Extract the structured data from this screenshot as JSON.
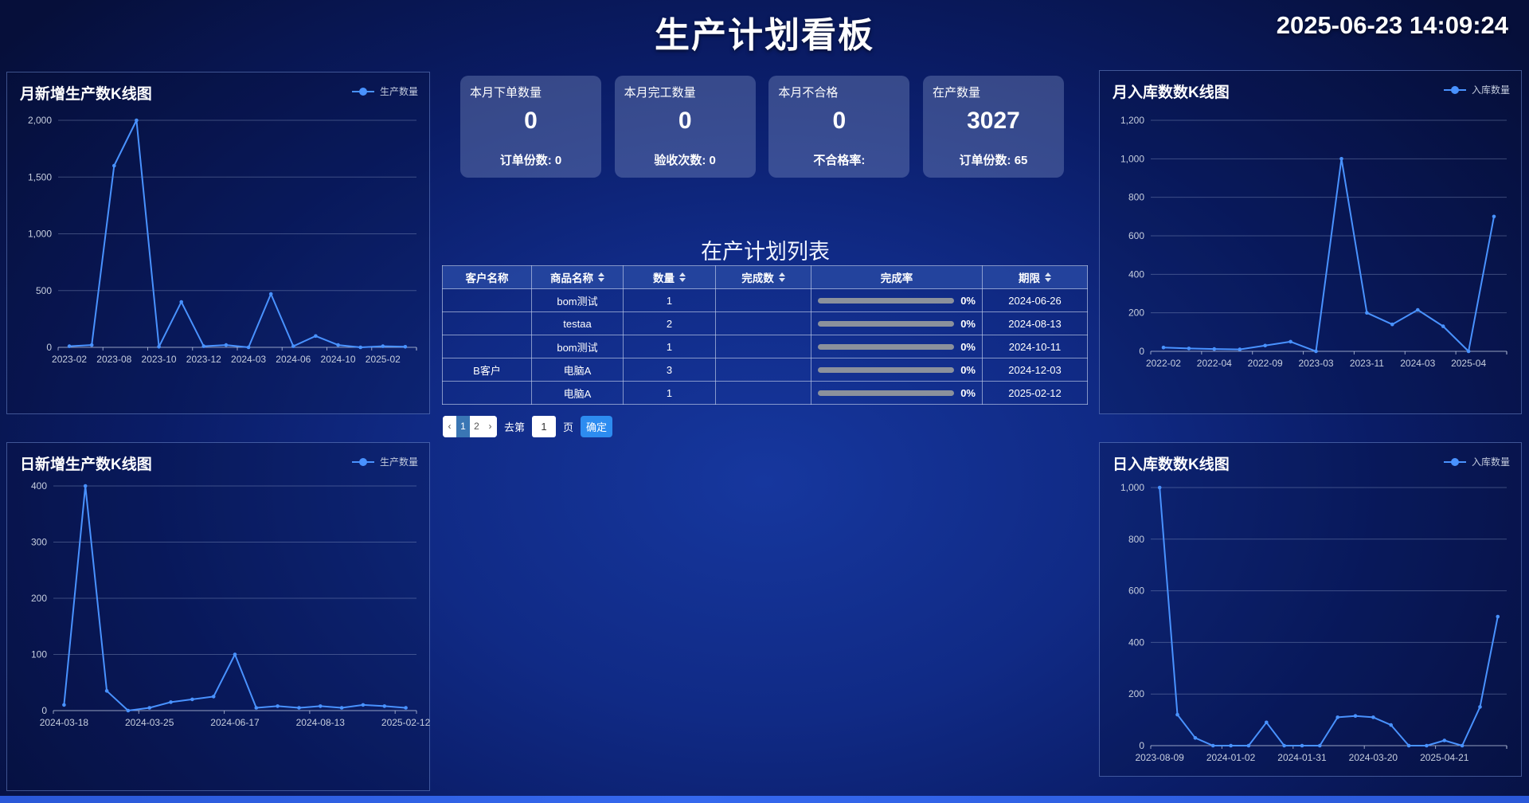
{
  "header": {
    "title": "生产计划看板",
    "clock": "2025-06-23 14:09:24"
  },
  "theme": {
    "series_color": "#4992ff",
    "accent_blue": "#2d8cf0",
    "active_page_bg": "#3a76b4",
    "progress_bar_color": "#8b919c"
  },
  "kpi_cards": [
    {
      "label": "本月下单数量",
      "value": "0",
      "footer": "订单份数: 0"
    },
    {
      "label": "本月完工数量",
      "value": "0",
      "footer": "验收次数: 0"
    },
    {
      "label": "本月不合格",
      "value": "0",
      "footer": "不合格率:"
    },
    {
      "label": "在产数量",
      "value": "3027",
      "footer": "订单份数: 65"
    }
  ],
  "table": {
    "title": "在产计划列表",
    "columns": [
      {
        "label": "客户名称",
        "sortable": false
      },
      {
        "label": "商品名称",
        "sortable": true
      },
      {
        "label": "数量",
        "sortable": true
      },
      {
        "label": "完成数",
        "sortable": true
      },
      {
        "label": "完成率",
        "sortable": false
      },
      {
        "label": "期限",
        "sortable": true
      }
    ],
    "rows": [
      {
        "customer": "",
        "product": "bom测试",
        "qty": "1",
        "done": "",
        "rate": "0%",
        "deadline": "2024-06-26"
      },
      {
        "customer": "",
        "product": "testaa",
        "qty": "2",
        "done": "",
        "rate": "0%",
        "deadline": "2024-08-13"
      },
      {
        "customer": "",
        "product": "bom测试",
        "qty": "1",
        "done": "",
        "rate": "0%",
        "deadline": "2024-10-11"
      },
      {
        "customer": "B客户",
        "product": "电脑A",
        "qty": "3",
        "done": "",
        "rate": "0%",
        "deadline": "2024-12-03"
      },
      {
        "customer": "",
        "product": "电脑A",
        "qty": "1",
        "done": "",
        "rate": "0%",
        "deadline": "2025-02-12"
      }
    ]
  },
  "pagination": {
    "prev_label": "‹",
    "pages": [
      "1",
      "2"
    ],
    "active_page": "1",
    "next_label": "›",
    "goto_prefix": "去第",
    "goto_value": "1",
    "goto_suffix": "页",
    "confirm_label": "确定"
  },
  "chart_data": [
    {
      "id": "monthly-production",
      "type": "line",
      "title": "月新增生产数K线图",
      "legend": "生产数量",
      "x_labels": [
        "2023-02",
        "2023-08",
        "2023-10",
        "2023-12",
        "2024-03",
        "2024-06",
        "2024-10",
        "2025-02"
      ],
      "label_step": 2,
      "values": [
        10,
        20,
        1600,
        2000,
        5,
        400,
        10,
        20,
        0,
        470,
        10,
        100,
        20,
        0,
        10,
        5
      ],
      "y_ticks": [
        0,
        500,
        1000,
        1500,
        2000
      ],
      "ylim": [
        0,
        2000
      ],
      "grid": true,
      "legend_position": "top-right"
    },
    {
      "id": "daily-production",
      "type": "line",
      "title": "日新增生产数K线图",
      "legend": "生产数量",
      "x_labels": [
        "2024-03-18",
        "2024-03-25",
        "2024-06-17",
        "2024-08-13",
        "2025-02-12"
      ],
      "label_step": 4,
      "values": [
        10,
        400,
        35,
        0,
        5,
        15,
        20,
        25,
        100,
        5,
        8,
        5,
        8,
        5,
        10,
        8,
        5
      ],
      "y_ticks": [
        0,
        100,
        200,
        300,
        400
      ],
      "ylim": [
        0,
        400
      ],
      "grid": true,
      "legend_position": "top-right"
    },
    {
      "id": "monthly-inbound",
      "type": "line",
      "title": "月入库数数K线图",
      "legend": "入库数量",
      "x_labels": [
        "2022-02",
        "2022-04",
        "2022-09",
        "2023-03",
        "2023-11",
        "2024-03",
        "2025-04"
      ],
      "label_step": 2,
      "values": [
        20,
        15,
        12,
        10,
        30,
        50,
        0,
        1000,
        200,
        140,
        215,
        130,
        0,
        700
      ],
      "y_ticks": [
        0,
        200,
        400,
        600,
        800,
        1000,
        1200
      ],
      "ylim": [
        0,
        1200
      ],
      "grid": true,
      "legend_position": "top-right"
    },
    {
      "id": "daily-inbound",
      "type": "line",
      "title": "日入库数数K线图",
      "legend": "入库数量",
      "x_labels": [
        "2023-08-09",
        "2024-01-02",
        "2024-01-31",
        "2024-03-20",
        "2025-04-21"
      ],
      "label_step": 4,
      "values": [
        1000,
        120,
        30,
        0,
        0,
        0,
        90,
        0,
        0,
        0,
        110,
        115,
        110,
        80,
        0,
        0,
        20,
        0,
        150,
        500
      ],
      "y_ticks": [
        0,
        200,
        400,
        600,
        800,
        1000
      ],
      "ylim": [
        0,
        1000
      ],
      "grid": true,
      "legend_position": "top-right"
    }
  ]
}
